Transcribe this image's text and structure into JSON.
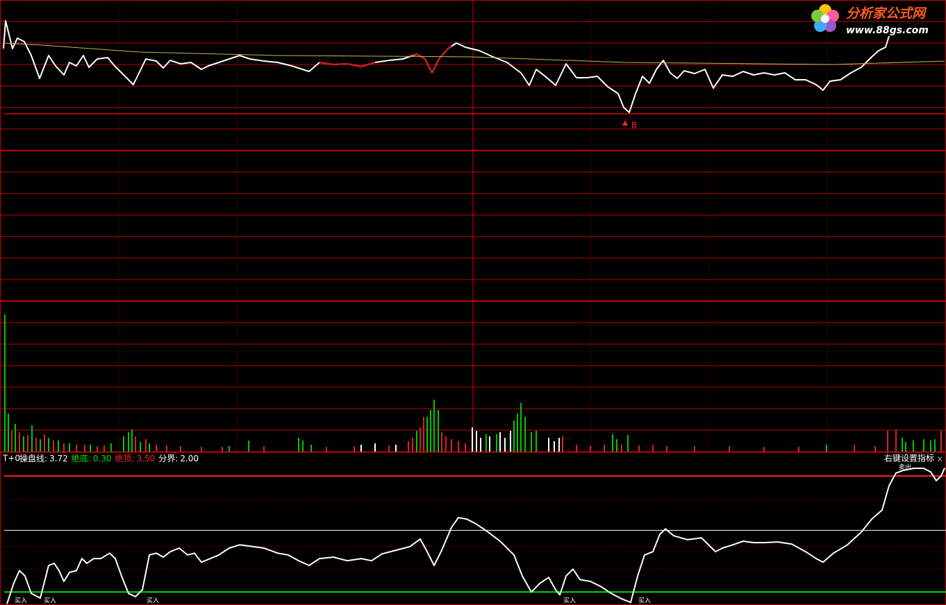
{
  "chart_data": [
    {
      "type": "line",
      "xlim": [
        0,
        1362
      ],
      "ylim": [
        0,
        651
      ],
      "series": [
        {
          "color": "#ffffff",
          "x": [
            5,
            8,
            18,
            25,
            35,
            45,
            57,
            70,
            80,
            92,
            100,
            110,
            120,
            128,
            140,
            155,
            165,
            178,
            192,
            210,
            225,
            235,
            245,
            260,
            275,
            290,
            300,
            315,
            330,
            345,
            360,
            380,
            400,
            420,
            445,
            460,
            480,
            500,
            520,
            540,
            560,
            580,
            600,
            612,
            622,
            632,
            645,
            657,
            670,
            690,
            710,
            730,
            750,
            762,
            772,
            785,
            800,
            815,
            830,
            845,
            860,
            875,
            890,
            898,
            906,
            915,
            925,
            935,
            945,
            955,
            965,
            975,
            985,
            1000,
            1015,
            1027,
            1040,
            1055,
            1070,
            1085,
            1100,
            1115,
            1130,
            1145,
            1160,
            1175,
            1185,
            1195,
            1210,
            1225,
            1240,
            1255,
            1265,
            1275,
            1280
          ],
          "values": [
            581,
            621,
            581,
            596,
            591,
            571,
            538,
            571,
            556,
            543,
            561,
            556,
            571,
            554,
            566,
            568,
            556,
            543,
            529,
            566,
            563,
            553,
            564,
            559,
            561,
            551,
            556,
            561,
            566,
            571,
            566,
            563,
            561,
            556,
            548,
            561,
            558,
            559,
            555,
            561,
            564,
            566,
            573,
            566,
            546,
            566,
            581,
            589,
            583,
            578,
            569,
            561,
            546,
            528,
            551,
            541,
            528,
            559,
            539,
            539,
            541,
            526,
            516,
            496,
            489,
            516,
            541,
            531,
            551,
            564,
            546,
            538,
            549,
            545,
            551,
            524,
            543,
            541,
            548,
            543,
            546,
            543,
            546,
            536,
            536,
            529,
            521,
            534,
            536,
            546,
            554,
            569,
            578,
            583,
            599
          ]
        },
        {
          "color": "#e01010",
          "x": [
            460,
            480,
            500,
            520,
            540,
            565,
            590,
            600,
            612,
            622,
            632,
            645,
            650
          ],
          "values": [
            561,
            558,
            559,
            555,
            561,
            null,
            571,
            573,
            566,
            546,
            566,
            581,
            585
          ]
        },
        {
          "color": "#c8b450",
          "x": [
            5,
            60,
            200,
            400,
            680,
            900,
            1200,
            1360
          ],
          "values": [
            589,
            586,
            576,
            571,
            569,
            561,
            558,
            563
          ]
        }
      ],
      "annotations": [
        {
          "text": "B",
          "x": 898
        }
      ]
    },
    {
      "type": "bar",
      "xlim": [
        0,
        1362
      ],
      "ylim": [
        0,
        217
      ],
      "series": [
        {
          "color": "#00c800",
          "x": [
            7,
            12,
            22,
            34,
            46,
            58,
            70,
            84,
            100,
            130,
            160,
            178,
            185,
            190,
            202,
            215,
            330,
            358,
            430,
            436,
            448,
            600,
            615,
            620,
            625,
            631,
            700,
            715,
            740,
            745,
            750,
            756,
            765,
            772,
            882,
            888,
            904,
            1190,
            1299,
            1304,
            1315,
            1330,
            1340,
            1346
          ],
          "values": [
            198,
            55,
            40,
            22,
            38,
            18,
            20,
            16,
            12,
            10,
            12,
            22,
            28,
            32,
            14,
            12,
            8,
            16,
            20,
            16,
            10,
            30,
            50,
            60,
            75,
            60,
            25,
            25,
            45,
            55,
            70,
            50,
            28,
            30,
            25,
            18,
            24,
            10,
            20,
            14,
            16,
            18,
            16,
            18
          ]
        },
        {
          "color": "#e02020",
          "x": [
            17,
            28,
            40,
            52,
            64,
            77,
            92,
            110,
            122,
            140,
            150,
            195,
            210,
            225,
            240,
            260,
            290,
            320,
            380,
            470,
            510,
            560,
            588,
            594,
            605,
            610,
            636,
            642,
            650,
            660,
            670,
            810,
            830,
            850,
            870,
            895,
            920,
            940,
            960,
            1000,
            1050,
            1100,
            1150,
            1230,
            1260,
            1278,
            1290,
            1355
          ],
          "values": [
            30,
            28,
            24,
            20,
            25,
            16,
            12,
            10,
            10,
            8,
            9,
            22,
            18,
            10,
            9,
            8,
            7,
            7,
            8,
            7,
            8,
            9,
            15,
            20,
            35,
            50,
            28,
            22,
            18,
            15,
            12,
            22,
            10,
            8,
            10,
            10,
            9,
            10,
            8,
            8,
            8,
            7,
            7,
            10,
            8,
            30,
            32,
            30
          ]
        },
        {
          "color": "#ffffff",
          "x": [
            520,
            540,
            570,
            680,
            686,
            692,
            705,
            720,
            727,
            735,
            790,
            798,
            805
          ],
          "values": [
            10,
            12,
            10,
            35,
            30,
            20,
            22,
            28,
            20,
            30,
            20,
            15,
            20
          ]
        }
      ]
    },
    {
      "type": "line",
      "title": "T+0",
      "xlim": [
        0,
        1362
      ],
      "ylim": [
        -0.06,
        4.15
      ],
      "series": [
        {
          "name": "操盘线:",
          "color": "#ffffff",
          "current": 3.72,
          "x": [
            10,
            20,
            28,
            36,
            45,
            58,
            70,
            78,
            85,
            92,
            100,
            110,
            118,
            125,
            135,
            145,
            158,
            166,
            175,
            185,
            195,
            205,
            215,
            225,
            235,
            245,
            258,
            270,
            280,
            290,
            300,
            315,
            330,
            345,
            360,
            380,
            400,
            415,
            430,
            445,
            460,
            480,
            500,
            520,
            535,
            550,
            570,
            590,
            605,
            615,
            625,
            635,
            650,
            660,
            672,
            685,
            700,
            720,
            740,
            752,
            765,
            778,
            790,
            800,
            806,
            815,
            825,
            835,
            850,
            865,
            880,
            895,
            908,
            918,
            928,
            940,
            950,
            958,
            970,
            990,
            1010,
            1025,
            1030,
            1040,
            1055,
            1070,
            1085,
            1100,
            1120,
            1140,
            1160,
            1175,
            1185,
            1200,
            1220,
            1240,
            1255,
            1270,
            1280,
            1290,
            1300,
            1315,
            1330,
            1340,
            1348,
            1355,
            1360
          ],
          "values": [
            -0.03,
            0.55,
            0.89,
            0.74,
            0.26,
            0.13,
            1.03,
            1.09,
            0.89,
            0.59,
            0.84,
            0.89,
            1.22,
            1.09,
            1.22,
            1.22,
            1.37,
            1.22,
            0.74,
            0.26,
            0.17,
            0.36,
            1.32,
            1.37,
            1.26,
            1.41,
            1.51,
            1.32,
            1.37,
            1.12,
            1.2,
            1.32,
            1.51,
            1.6,
            1.56,
            1.51,
            1.37,
            1.32,
            1.16,
            1.03,
            1.22,
            1.26,
            1.16,
            1.22,
            1.16,
            1.35,
            1.45,
            1.55,
            1.76,
            1.41,
            1.03,
            1.41,
            2.08,
            2.35,
            2.31,
            2.18,
            1.99,
            1.7,
            1.32,
            0.74,
            0.3,
            0.55,
            0.7,
            0.36,
            0.22,
            0.74,
            0.93,
            0.64,
            0.59,
            0.45,
            0.26,
            0.11,
            0.01,
            0.74,
            1.32,
            1.41,
            1.89,
            2.04,
            1.85,
            1.74,
            1.79,
            1.51,
            1.41,
            1.51,
            1.6,
            1.7,
            1.66,
            1.66,
            1.68,
            1.62,
            1.41,
            1.22,
            1.12,
            1.37,
            1.6,
            1.95,
            2.31,
            2.56,
            3.23,
            3.58,
            3.65,
            3.71,
            3.71,
            3.61,
            3.37,
            3.5,
            3.72
          ]
        }
      ],
      "levels": [
        {
          "name": "绝底:",
          "value": 0.3,
          "label": "0.30",
          "color": "#00e000"
        },
        {
          "name": "绝顶:",
          "value": 3.5,
          "label": "3.50",
          "color": "#ff2020"
        },
        {
          "name": "分界:",
          "value": 2,
          "label": "2.00",
          "color": "#ffffff"
        }
      ],
      "grid_levels": [
        2.85,
        1.56,
        0.93
      ],
      "signals": [
        {
          "text": "买入",
          "x": 30
        },
        {
          "text": "买入",
          "x": 72
        },
        {
          "text": "买入",
          "x": 220
        },
        {
          "text": "买入",
          "x": 820
        },
        {
          "text": "买入",
          "x": 928
        },
        {
          "text": "卖出",
          "x": 1303
        }
      ],
      "settings_label": "右键设置指标",
      "close_label": "×"
    }
  ],
  "watermark": {
    "title": "分析家公式网",
    "url": "www.88gs.com"
  }
}
